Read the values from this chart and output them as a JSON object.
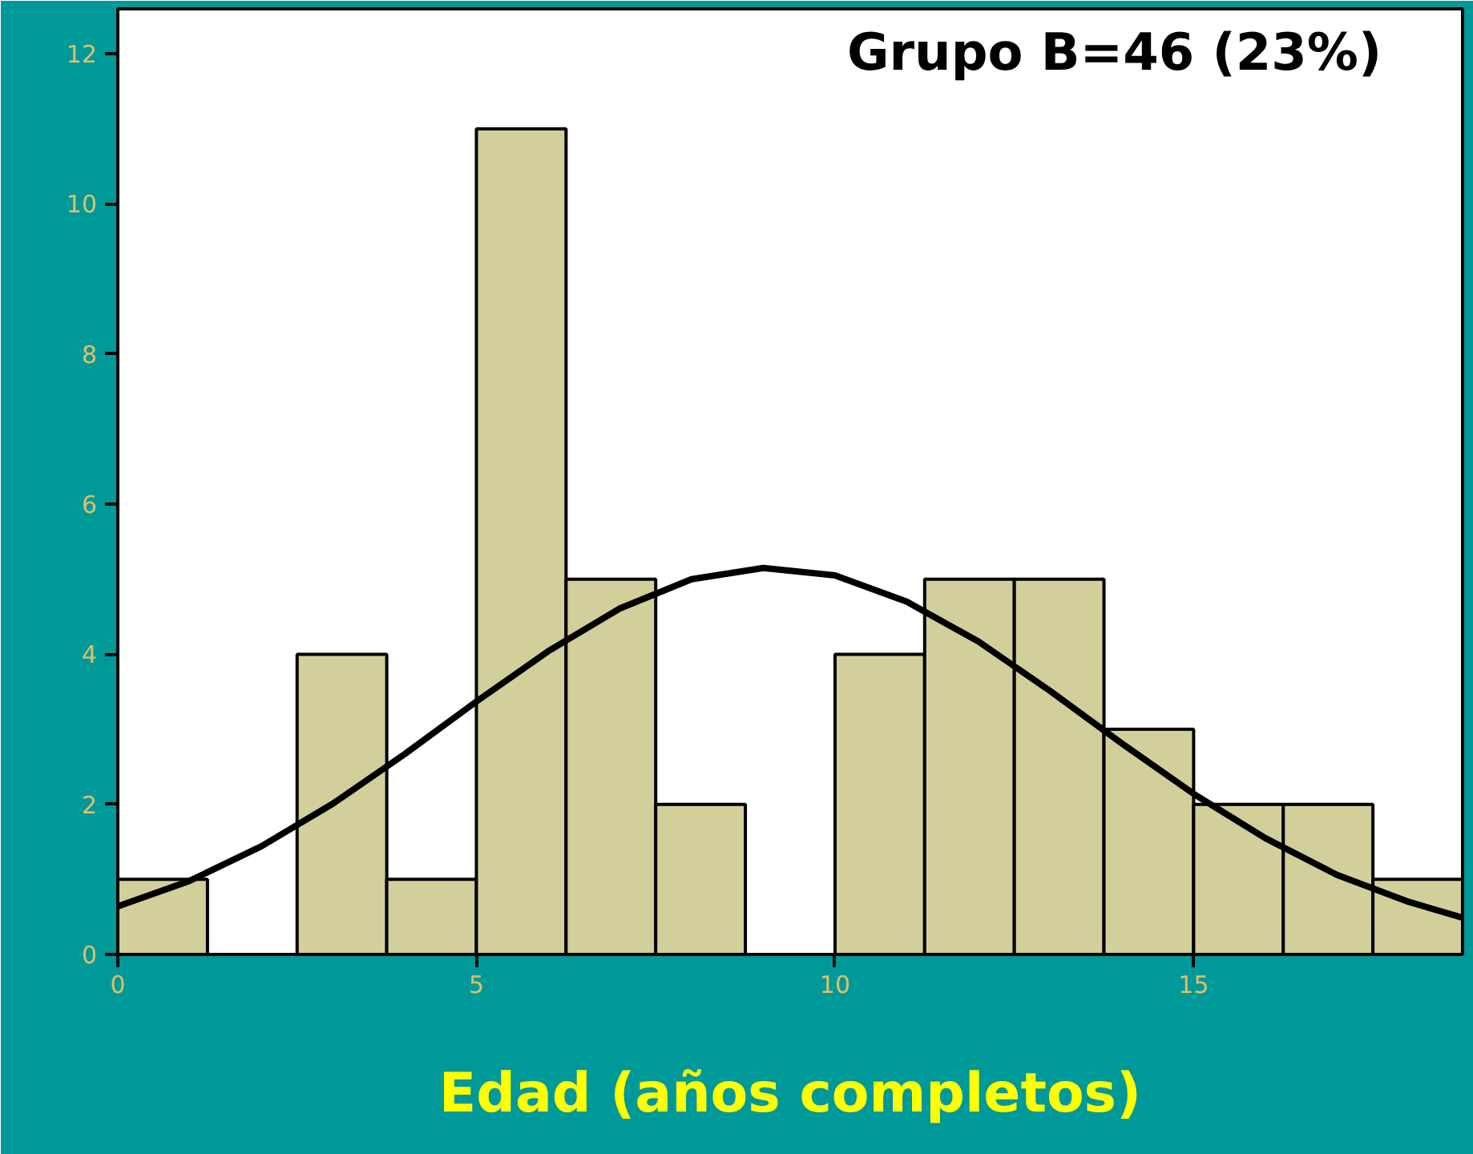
{
  "chart_data": {
    "type": "histogram",
    "xlabel": "Edad (años completos)",
    "annotations": [
      "Grupo B=46 (23%)"
    ],
    "bins": [
      0,
      1.25,
      2.5,
      3.75,
      5,
      6.25,
      7.5,
      8.75,
      10,
      11.25,
      12.5,
      13.75,
      15,
      16.25,
      17.5,
      18.75
    ],
    "values": [
      1,
      0,
      4,
      1,
      11,
      5,
      2,
      0,
      4,
      5,
      5,
      3,
      2,
      2,
      1
    ],
    "color": "#d3cf9b",
    "series": [
      {
        "type": "line",
        "color": "#000000",
        "x": [
          0,
          1,
          2,
          3,
          4,
          5,
          6,
          7,
          8,
          9,
          10,
          11,
          12,
          13,
          14,
          15,
          16,
          17,
          18,
          18.75
        ],
        "values": [
          0.64,
          0.98,
          1.44,
          2.01,
          2.67,
          3.37,
          4.04,
          4.61,
          5.0,
          5.15,
          5.05,
          4.7,
          4.17,
          3.51,
          2.81,
          2.14,
          1.55,
          1.06,
          0.7,
          0.49
        ]
      }
    ],
    "xlim": [
      0,
      18.75
    ],
    "ylim": [
      0,
      12.6
    ],
    "xticks": [
      0,
      5,
      10,
      15
    ],
    "yticks": [
      0,
      2,
      4,
      6,
      8,
      10,
      12
    ],
    "grid": false
  }
}
